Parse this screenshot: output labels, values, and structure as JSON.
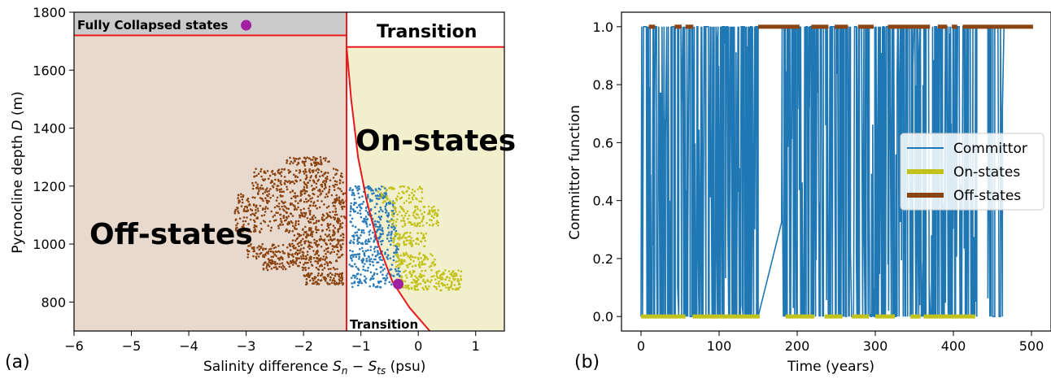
{
  "chart_data": [
    {
      "type": "scatter",
      "panel_label": "(a)",
      "xlabel_prefix": "Salinity difference ",
      "xlabel_math": "S",
      "xlabel_sub1": "n",
      "xlabel_minus": " − ",
      "xlabel_math2": "S",
      "xlabel_sub2": "ts",
      "xlabel_suffix": " (psu)",
      "ylabel_prefix": "Pycnocline depth ",
      "ylabel_math": "D",
      "ylabel_suffix": " (m)",
      "xlim": [
        -6,
        1.5
      ],
      "ylim": [
        700,
        1800
      ],
      "xticks": [
        -6,
        -5,
        -4,
        -3,
        -2,
        -1,
        0,
        1
      ],
      "xtick_labels": [
        "−6",
        "−5",
        "−4",
        "−3",
        "−2",
        "−1",
        "0",
        "1"
      ],
      "yticks": [
        800,
        1000,
        1200,
        1400,
        1600,
        1800
      ],
      "ytick_labels": [
        "800",
        "1000",
        "1200",
        "1400",
        "1600",
        "1800"
      ],
      "regions": {
        "off_states_label": "Off-states",
        "on_states_label": "On-states",
        "collapsed_label": "Fully Collapsed states",
        "transition_top_label": "Transition",
        "transition_bottom_label": "Transition",
        "vertical_boundary_x": -1.25,
        "collapsed_threshold_y": 1720,
        "on_top_threshold_y": 1680
      },
      "colors": {
        "off_region": "#e8d9cf",
        "on_region": "#f2efcc",
        "collapsed_region": "#cacaca",
        "boundary": "#e8191c",
        "off_points": "#8b4513",
        "on_points": "#c2c21c",
        "transition_points": "#2a7ab8",
        "marker": "#a020a0"
      },
      "point_clusters": [
        {
          "class": "off",
          "xmin": -2.3,
          "xmax": -1.55,
          "ymin": 1270,
          "ymax": 1300,
          "n": 60
        },
        {
          "class": "off",
          "xmin": -2.9,
          "xmax": -1.3,
          "ymin": 1180,
          "ymax": 1260,
          "n": 220
        },
        {
          "class": "off",
          "xmin": -3.2,
          "xmax": -1.25,
          "ymin": 1040,
          "ymax": 1180,
          "n": 420
        },
        {
          "class": "off",
          "xmin": -2.2,
          "xmax": -1.3,
          "ymin": 1000,
          "ymax": 1040,
          "n": 80
        },
        {
          "class": "off",
          "xmin": -3.0,
          "xmax": -1.3,
          "ymin": 950,
          "ymax": 1000,
          "n": 180
        },
        {
          "class": "off",
          "xmin": -2.7,
          "xmax": -1.4,
          "ymin": 910,
          "ymax": 950,
          "n": 120
        },
        {
          "class": "off",
          "xmin": -2.0,
          "xmax": -1.3,
          "ymin": 860,
          "ymax": 900,
          "n": 90
        },
        {
          "class": "transition",
          "xmin": -1.2,
          "xmax": -0.55,
          "ymin": 1150,
          "ymax": 1200,
          "n": 70
        },
        {
          "class": "transition",
          "xmin": -1.2,
          "xmax": -0.4,
          "ymin": 1050,
          "ymax": 1150,
          "n": 120
        },
        {
          "class": "transition",
          "xmin": -1.2,
          "xmax": -0.35,
          "ymin": 970,
          "ymax": 1050,
          "n": 110
        },
        {
          "class": "transition",
          "xmin": -1.2,
          "xmax": -0.3,
          "ymin": 850,
          "ymax": 970,
          "n": 160
        },
        {
          "class": "on",
          "xmin": -0.7,
          "xmax": 0.1,
          "ymin": 1140,
          "ymax": 1200,
          "n": 70
        },
        {
          "class": "on",
          "xmin": -0.5,
          "xmax": 0.35,
          "ymin": 1060,
          "ymax": 1130,
          "n": 110
        },
        {
          "class": "on",
          "xmin": -0.45,
          "xmax": 0.15,
          "ymin": 990,
          "ymax": 1040,
          "n": 70
        },
        {
          "class": "on",
          "xmin": -0.4,
          "xmax": 0.3,
          "ymin": 920,
          "ymax": 970,
          "n": 80
        },
        {
          "class": "on",
          "xmin": -0.3,
          "xmax": 0.75,
          "ymin": 840,
          "ymax": 910,
          "n": 180
        }
      ],
      "markers": [
        {
          "x": -3.0,
          "y": 1755
        },
        {
          "x": -0.35,
          "y": 862
        }
      ],
      "on_boundary_curve": {
        "note_free": true,
        "points": [
          [
            -1.25,
            1680
          ],
          [
            -1.17,
            1500
          ],
          [
            -1.05,
            1300
          ],
          [
            -0.9,
            1150
          ],
          [
            -0.7,
            1000
          ],
          [
            -0.45,
            870
          ],
          [
            -0.15,
            780
          ],
          [
            0.2,
            700
          ]
        ]
      }
    },
    {
      "type": "line",
      "panel_label": "(b)",
      "xlabel": "Time (years)",
      "ylabel": "Committor function",
      "xlim": [
        -25,
        525
      ],
      "ylim": [
        -0.05,
        1.05
      ],
      "xticks": [
        0,
        100,
        200,
        300,
        400,
        500
      ],
      "xtick_labels": [
        "0",
        "100",
        "200",
        "300",
        "400",
        "500"
      ],
      "yticks": [
        0.0,
        0.2,
        0.4,
        0.6,
        0.8,
        1.0
      ],
      "ytick_labels": [
        "0.0",
        "0.2",
        "0.4",
        "0.6",
        "0.8",
        "1.0"
      ],
      "legend": {
        "placement": "center-right",
        "entries": [
          {
            "name": "Committor",
            "color": "#1f77b4"
          },
          {
            "name": "On-states",
            "color": "#c2c21c"
          },
          {
            "name": "Off-states",
            "color": "#8b4513"
          }
        ]
      },
      "off_state_intervals": [
        [
          10,
          18
        ],
        [
          43,
          52
        ],
        [
          57,
          67
        ],
        [
          150,
          203
        ],
        [
          218,
          240
        ],
        [
          248,
          265
        ],
        [
          278,
          298
        ],
        [
          316,
          370
        ],
        [
          380,
          392
        ],
        [
          398,
          405
        ],
        [
          412,
          502
        ]
      ],
      "on_state_intervals": [
        [
          0,
          57
        ],
        [
          66,
          152
        ],
        [
          185,
          222
        ],
        [
          235,
          258
        ],
        [
          270,
          292
        ],
        [
          300,
          325
        ],
        [
          345,
          358
        ],
        [
          362,
          428
        ]
      ],
      "committor_spike_segments": [
        {
          "start": 0,
          "end": 150,
          "n": 130
        },
        {
          "start": 180,
          "end": 430,
          "n": 230
        },
        {
          "start": 440,
          "end": 465,
          "n": 14
        }
      ]
    }
  ]
}
